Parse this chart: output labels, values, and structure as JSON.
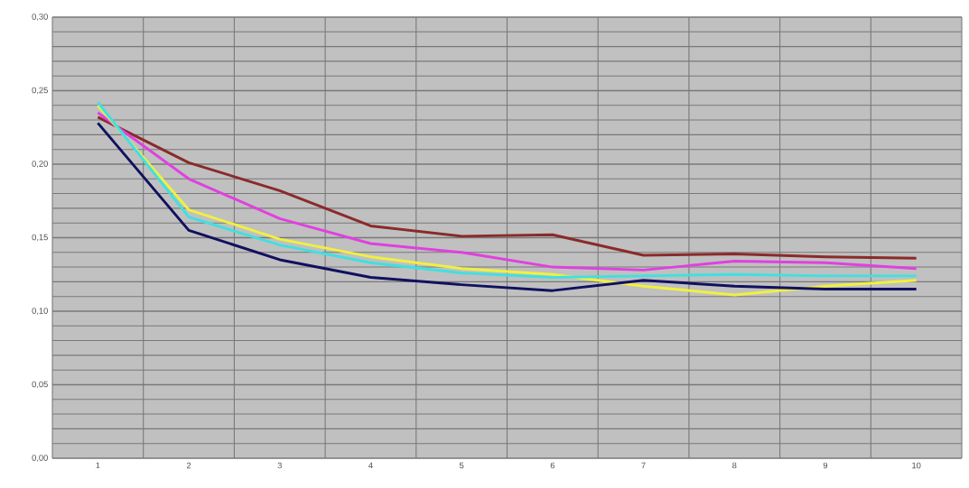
{
  "chart_data": {
    "type": "line",
    "categories": [
      "1",
      "2",
      "3",
      "4",
      "5",
      "6",
      "7",
      "8",
      "9",
      "10"
    ],
    "series": [
      {
        "color": "#8b2a2a",
        "values": [
          0.232,
          0.201,
          0.182,
          0.158,
          0.151,
          0.152,
          0.138,
          0.139,
          0.137,
          0.136
        ]
      },
      {
        "color": "#e040e0",
        "values": [
          0.235,
          0.19,
          0.163,
          0.146,
          0.14,
          0.13,
          0.128,
          0.134,
          0.133,
          0.129
        ]
      },
      {
        "color": "#f0f040",
        "values": [
          0.24,
          0.169,
          0.149,
          0.137,
          0.129,
          0.125,
          0.117,
          0.111,
          0.117,
          0.121
        ]
      },
      {
        "color": "#40e0e0",
        "values": [
          0.242,
          0.164,
          0.145,
          0.133,
          0.126,
          0.123,
          0.124,
          0.125,
          0.124,
          0.124
        ]
      },
      {
        "color": "#101060",
        "values": [
          0.228,
          0.155,
          0.135,
          0.123,
          0.118,
          0.114,
          0.121,
          0.117,
          0.115,
          0.115
        ]
      }
    ],
    "ylim": [
      0,
      0.3
    ],
    "yticks": [
      {
        "value": 0,
        "label": "0,00"
      },
      {
        "value": 0.05,
        "label": "0,05"
      },
      {
        "value": 0.1,
        "label": "0,10"
      },
      {
        "value": 0.15,
        "label": "0,15"
      },
      {
        "value": 0.2,
        "label": "0,20"
      },
      {
        "value": 0.25,
        "label": "0,25"
      },
      {
        "value": 0.3,
        "label": "0,30"
      }
    ],
    "grid": true,
    "marker": "none",
    "line_style": "solid"
  }
}
